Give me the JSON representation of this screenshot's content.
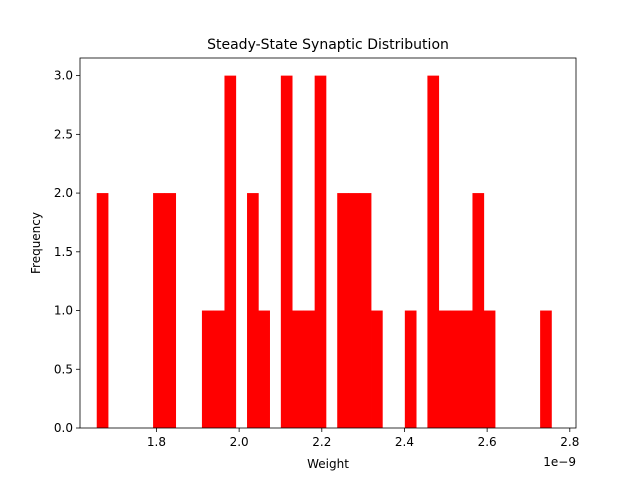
{
  "chart_data": {
    "type": "bar",
    "title": "Steady-State Synaptic  Distribution",
    "xlabel": "Weight",
    "ylabel": "Frequency",
    "x_scale_label": "1e−9",
    "bar_color": "#ff0000",
    "xlim": [
      1.615,
      2.815
    ],
    "ylim": [
      0,
      3.15
    ],
    "x_ticks": [
      1.8,
      2.0,
      2.2,
      2.4,
      2.6,
      2.8
    ],
    "x_tick_labels": [
      "1.8",
      "2.0",
      "2.2",
      "2.4",
      "2.6",
      "2.8"
    ],
    "y_ticks": [
      0.0,
      0.5,
      1.0,
      1.5,
      2.0,
      2.5,
      3.0
    ],
    "y_tick_labels": [
      "0.0",
      "0.5",
      "1.0",
      "1.5",
      "2.0",
      "2.5",
      "3.0"
    ],
    "bin_width": 0.02727,
    "bars": [
      {
        "x": 1.6555,
        "count": 2
      },
      {
        "x": 1.7918,
        "count": 2
      },
      {
        "x": 1.8191,
        "count": 2
      },
      {
        "x": 1.91,
        "count": 1
      },
      {
        "x": 1.9373,
        "count": 1
      },
      {
        "x": 1.9645,
        "count": 3
      },
      {
        "x": 2.0191,
        "count": 2
      },
      {
        "x": 2.0464,
        "count": 1
      },
      {
        "x": 2.1009,
        "count": 3
      },
      {
        "x": 2.1282,
        "count": 1
      },
      {
        "x": 2.1555,
        "count": 1
      },
      {
        "x": 2.1827,
        "count": 3
      },
      {
        "x": 2.2373,
        "count": 2
      },
      {
        "x": 2.2645,
        "count": 2
      },
      {
        "x": 2.2918,
        "count": 2
      },
      {
        "x": 2.3191,
        "count": 1
      },
      {
        "x": 2.4009,
        "count": 1
      },
      {
        "x": 2.4555,
        "count": 3
      },
      {
        "x": 2.4827,
        "count": 1
      },
      {
        "x": 2.51,
        "count": 1
      },
      {
        "x": 2.5373,
        "count": 1
      },
      {
        "x": 2.5645,
        "count": 2
      },
      {
        "x": 2.5918,
        "count": 1
      },
      {
        "x": 2.7282,
        "count": 1
      }
    ]
  }
}
